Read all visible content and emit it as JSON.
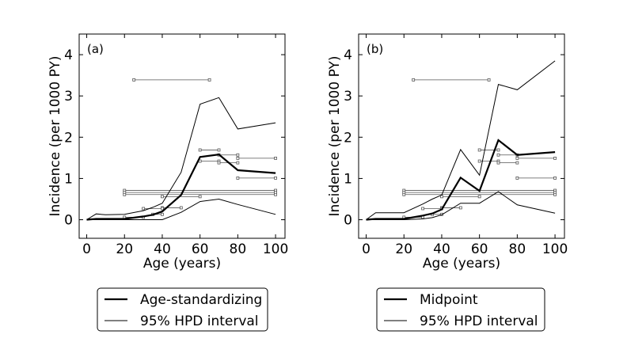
{
  "colors": {
    "line": "#000000",
    "interval_marker": "#555555",
    "background": "#ffffff"
  },
  "chart_data": [
    {
      "type": "line",
      "panel_label": "(a)",
      "xlabel": "Age (years)",
      "ylabel": "Incidence (per 1000 PY)",
      "xlim": [
        -4,
        105
      ],
      "ylim": [
        -0.45,
        4.5
      ],
      "xticks": [
        0,
        20,
        40,
        60,
        80,
        100
      ],
      "yticks": [
        0,
        1,
        2,
        3,
        4
      ],
      "series": [
        {
          "name": "Age-standardizing",
          "style": "thick",
          "x": [
            0,
            5,
            10,
            20,
            30,
            35,
            40,
            50,
            60,
            70,
            80,
            100
          ],
          "y": [
            0.0,
            0.02,
            0.02,
            0.02,
            0.08,
            0.12,
            0.2,
            0.6,
            1.52,
            1.58,
            1.2,
            1.13
          ]
        },
        {
          "name": "95% HPD interval",
          "style": "thin",
          "x": [
            0,
            5,
            10,
            20,
            30,
            35,
            40,
            50,
            60,
            70,
            80,
            100
          ],
          "y": [
            0.0,
            0.14,
            0.12,
            0.13,
            0.22,
            0.3,
            0.4,
            1.15,
            2.8,
            2.96,
            2.2,
            2.35
          ]
        },
        {
          "name": "",
          "style": "thin",
          "x": [
            0,
            5,
            10,
            20,
            30,
            35,
            40,
            50,
            60,
            70,
            80,
            100
          ],
          "y": [
            0.0,
            0.0,
            0.0,
            0.0,
            0.0,
            0.0,
            0.0,
            0.18,
            0.44,
            0.5,
            0.37,
            0.13
          ]
        }
      ],
      "intervals": [
        {
          "x0": 25,
          "x1": 65,
          "y": 3.39
        },
        {
          "x0": 60,
          "x1": 70,
          "y": 1.69
        },
        {
          "x0": 70,
          "x1": 80,
          "y": 1.57
        },
        {
          "x0": 80,
          "x1": 100,
          "y": 1.49
        },
        {
          "x0": 60,
          "x1": 70,
          "y": 1.42
        },
        {
          "x0": 70,
          "x1": 80,
          "y": 1.38
        },
        {
          "x0": 80,
          "x1": 100,
          "y": 1.01
        },
        {
          "x0": 20,
          "x1": 100,
          "y": 0.71
        },
        {
          "x0": 20,
          "x1": 100,
          "y": 0.66
        },
        {
          "x0": 20,
          "x1": 100,
          "y": 0.61
        },
        {
          "x0": 40,
          "x1": 60,
          "y": 0.56
        },
        {
          "x0": 40,
          "x1": 50,
          "y": 0.29
        },
        {
          "x0": 30,
          "x1": 40,
          "y": 0.27
        },
        {
          "x0": 35,
          "x1": 40,
          "y": 0.13
        },
        {
          "x0": 20,
          "x1": 30,
          "y": 0.06
        }
      ],
      "legend": [
        "Age-standardizing",
        "95% HPD interval"
      ]
    },
    {
      "type": "line",
      "panel_label": "(b)",
      "xlabel": "Age (years)",
      "ylabel": "Incidence (per 1000 PY)",
      "xlim": [
        -4,
        105
      ],
      "ylim": [
        -0.45,
        4.5
      ],
      "xticks": [
        0,
        20,
        40,
        60,
        80,
        100
      ],
      "yticks": [
        0,
        1,
        2,
        3,
        4
      ],
      "series": [
        {
          "name": "Midpoint",
          "style": "thick",
          "x": [
            0,
            5,
            10,
            20,
            30,
            35,
            40,
            50,
            60,
            70,
            80,
            100
          ],
          "y": [
            0.0,
            0.02,
            0.02,
            0.02,
            0.1,
            0.15,
            0.25,
            1.02,
            0.7,
            1.93,
            1.57,
            1.64
          ]
        },
        {
          "name": "95% HPD interval",
          "style": "thin",
          "x": [
            0,
            5,
            10,
            20,
            30,
            35,
            40,
            50,
            60,
            70,
            80,
            100
          ],
          "y": [
            0.0,
            0.17,
            0.17,
            0.17,
            0.38,
            0.5,
            0.6,
            1.7,
            1.08,
            3.28,
            3.15,
            3.85
          ]
        },
        {
          "name": "",
          "style": "thin",
          "x": [
            0,
            5,
            10,
            20,
            30,
            35,
            40,
            50,
            60,
            70,
            80,
            100
          ],
          "y": [
            0.0,
            0.0,
            0.0,
            0.0,
            0.02,
            0.05,
            0.12,
            0.4,
            0.4,
            0.68,
            0.36,
            0.16
          ]
        }
      ],
      "intervals": [
        {
          "x0": 25,
          "x1": 65,
          "y": 3.39
        },
        {
          "x0": 60,
          "x1": 70,
          "y": 1.69
        },
        {
          "x0": 70,
          "x1": 80,
          "y": 1.57
        },
        {
          "x0": 80,
          "x1": 100,
          "y": 1.49
        },
        {
          "x0": 60,
          "x1": 70,
          "y": 1.42
        },
        {
          "x0": 70,
          "x1": 80,
          "y": 1.38
        },
        {
          "x0": 80,
          "x1": 100,
          "y": 1.01
        },
        {
          "x0": 20,
          "x1": 100,
          "y": 0.71
        },
        {
          "x0": 20,
          "x1": 100,
          "y": 0.66
        },
        {
          "x0": 20,
          "x1": 100,
          "y": 0.61
        },
        {
          "x0": 40,
          "x1": 60,
          "y": 0.56
        },
        {
          "x0": 40,
          "x1": 50,
          "y": 0.29
        },
        {
          "x0": 30,
          "x1": 40,
          "y": 0.27
        },
        {
          "x0": 35,
          "x1": 40,
          "y": 0.13
        },
        {
          "x0": 20,
          "x1": 30,
          "y": 0.06
        }
      ],
      "legend": [
        "Midpoint",
        "95% HPD interval"
      ]
    }
  ]
}
